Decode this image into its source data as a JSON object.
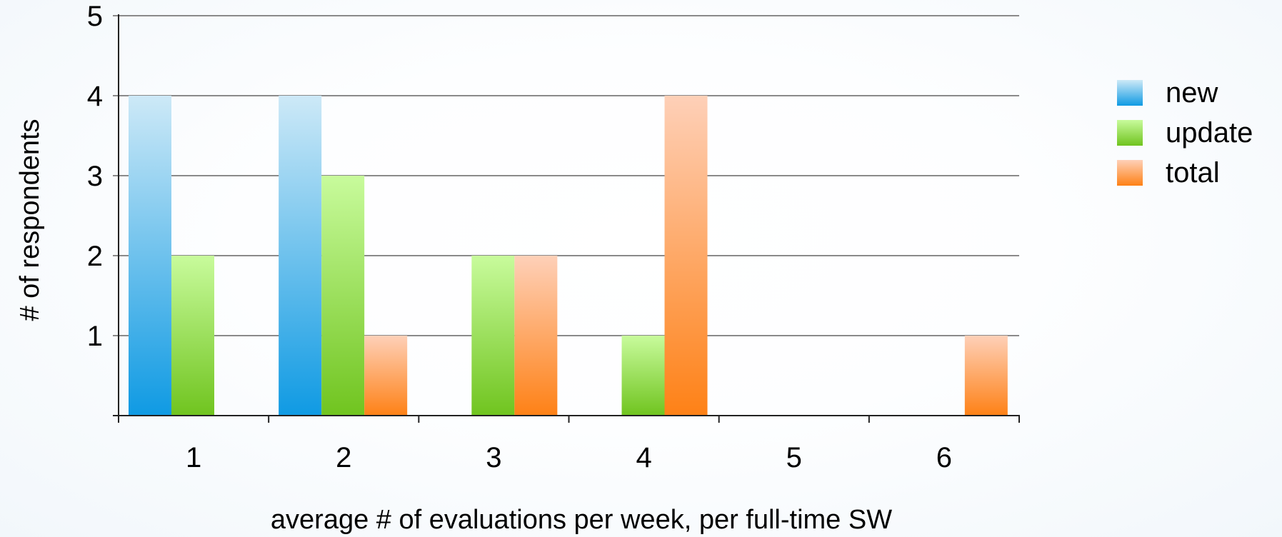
{
  "chart_data": {
    "type": "bar",
    "title": "",
    "xlabel": "average # of evaluations per week, per full-time SW",
    "ylabel": "# of respondents",
    "categories": [
      "1",
      "2",
      "3",
      "4",
      "5",
      "6"
    ],
    "y_ticks": [
      "1",
      "2",
      "3",
      "4",
      "5"
    ],
    "ylim": [
      0,
      5
    ],
    "grid": true,
    "legend_position": "right",
    "series": [
      {
        "name": "new",
        "values": [
          4,
          4,
          0,
          0,
          0,
          0
        ],
        "color_top": "#cde9f7",
        "color_bottom": "#0f9ae3"
      },
      {
        "name": "update",
        "values": [
          2,
          3,
          2,
          1,
          0,
          0
        ],
        "color_top": "#c8fb9c",
        "color_bottom": "#70c41f"
      },
      {
        "name": "total",
        "values": [
          0,
          1,
          2,
          4,
          0,
          1
        ],
        "color_top": "#fed0b8",
        "color_bottom": "#fe8116"
      }
    ]
  }
}
